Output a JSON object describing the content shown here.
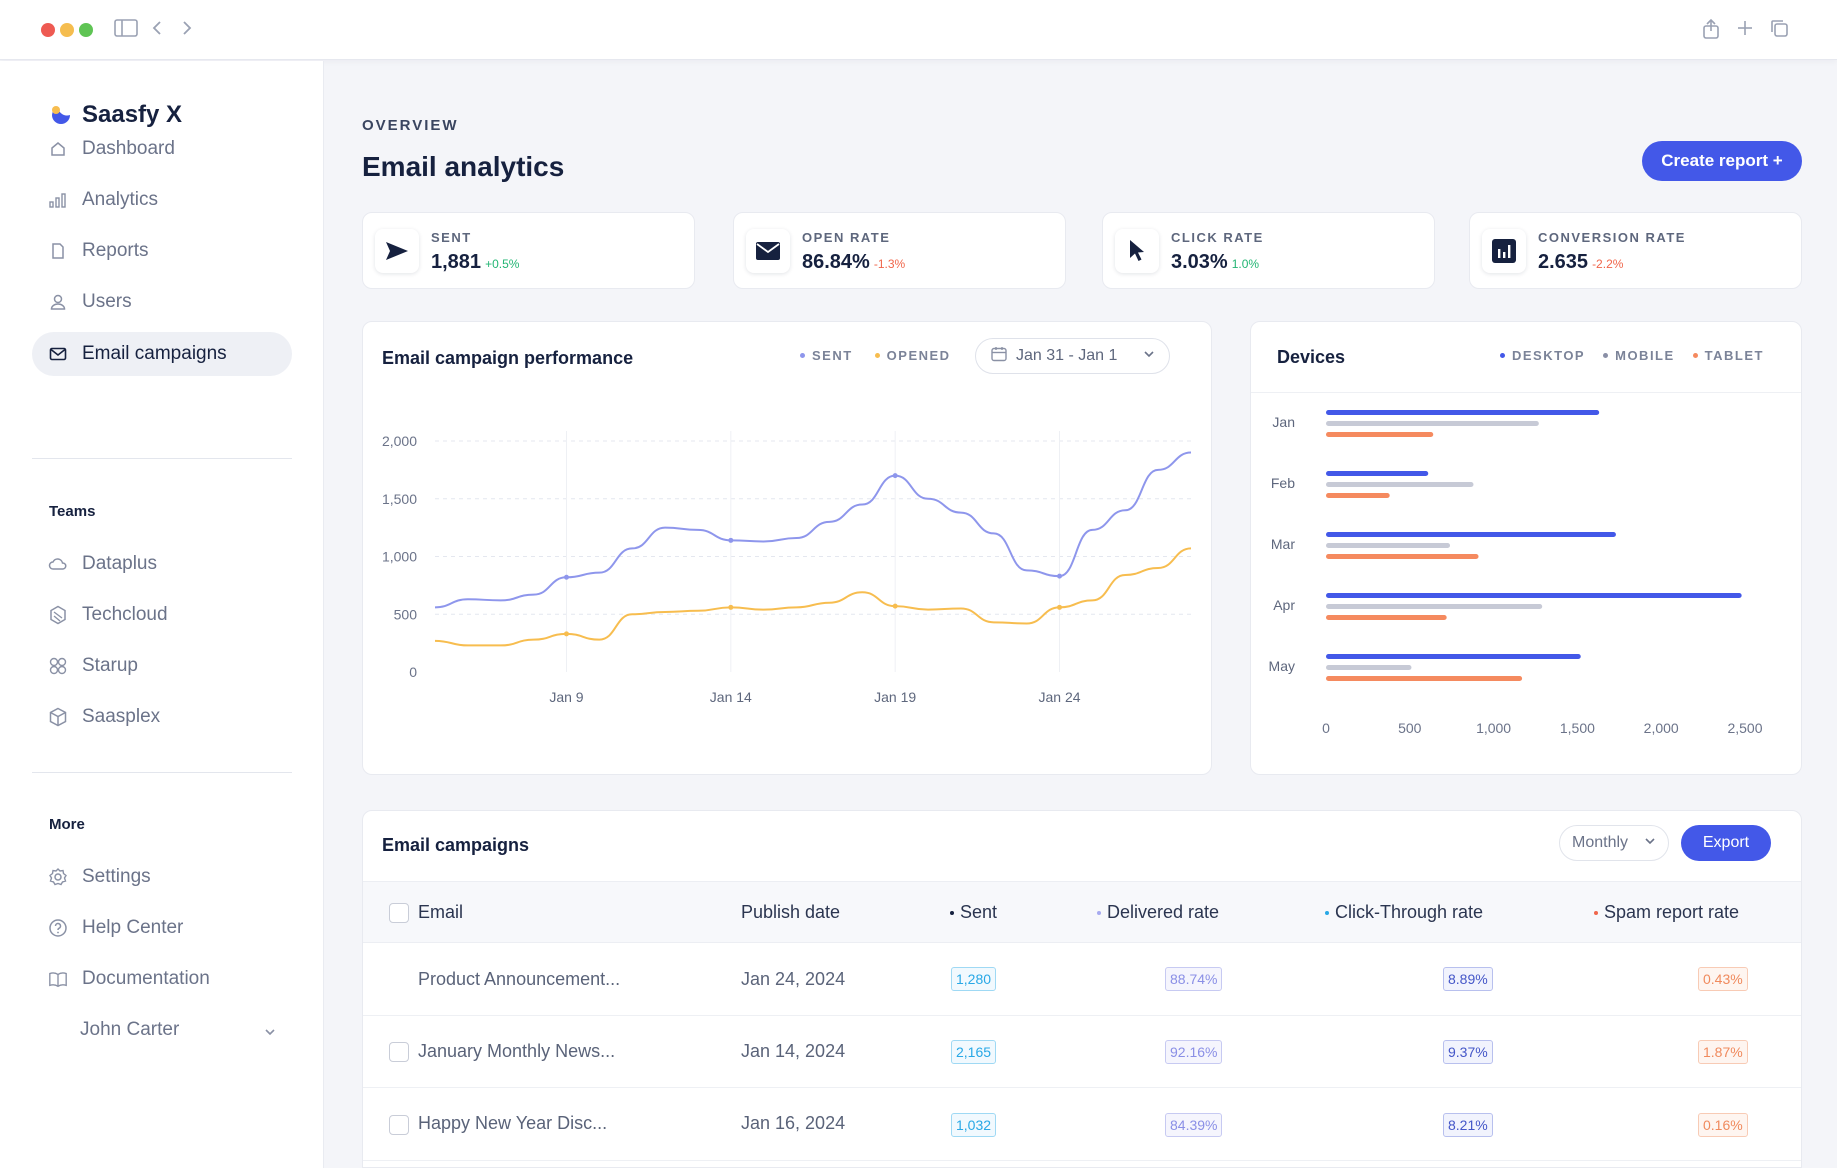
{
  "app": {
    "name": "Saasfy X"
  },
  "colors": {
    "accent": "#4358e8",
    "sent": "#8e96ec",
    "opened": "#f7bd4f",
    "desktop": "#4358e8",
    "mobile": "#c7cad6",
    "tablet": "#f58a5f"
  },
  "sidebar": {
    "main_items": [
      {
        "label": "Dashboard",
        "icon": "home-icon"
      },
      {
        "label": "Analytics",
        "icon": "bar-chart-icon"
      },
      {
        "label": "Reports",
        "icon": "document-icon"
      },
      {
        "label": "Users",
        "icon": "user-icon"
      },
      {
        "label": "Email campaigns",
        "icon": "mail-icon",
        "active": true
      }
    ],
    "teams_label": "Teams",
    "teams": [
      {
        "label": "Dataplus",
        "icon": "cloud-icon"
      },
      {
        "label": "Techcloud",
        "icon": "hexagon-icon"
      },
      {
        "label": "Starup",
        "icon": "grid-circles-icon"
      },
      {
        "label": "Saasplex",
        "icon": "cube-icon"
      }
    ],
    "more_label": "More",
    "more": [
      {
        "label": "Settings",
        "icon": "gear-icon"
      },
      {
        "label": "Help Center",
        "icon": "help-icon"
      },
      {
        "label": "Documentation",
        "icon": "book-icon"
      }
    ],
    "user": {
      "name": "John Carter"
    }
  },
  "header": {
    "overline": "OVERVIEW",
    "title": "Email analytics",
    "create_button": "Create report +"
  },
  "kpis": [
    {
      "label": "SENT",
      "value": "1,881",
      "delta": "+0.5%",
      "trend": "up",
      "icon": "send-icon"
    },
    {
      "label": "OPEN RATE",
      "value": "86.84%",
      "delta": "-1.3%",
      "trend": "down",
      "icon": "envelope-icon"
    },
    {
      "label": "CLICK RATE",
      "value": "3.03%",
      "delta": "1.0%",
      "trend": "up",
      "icon": "cursor-icon"
    },
    {
      "label": "CONVERSION RATE",
      "value": "2.635",
      "delta": "-2.2%",
      "trend": "down",
      "icon": "chart-box-icon"
    }
  ],
  "performance": {
    "title": "Email campaign performance",
    "legend": [
      "SENT",
      "OPENED"
    ],
    "date_range": "Jan 31 - Jan 1"
  },
  "devices": {
    "title": "Devices",
    "legend": [
      "DESKTOP",
      "MOBILE",
      "TABLET"
    ]
  },
  "chart_data": [
    {
      "type": "line",
      "title": "Email campaign performance",
      "x_ticks": [
        "Jan 9",
        "Jan 14",
        "Jan 19",
        "Jan 24"
      ],
      "y_ticks": [
        "0",
        "500",
        "1,000",
        "1,500",
        "2,000"
      ],
      "ylim": [
        0,
        2000
      ],
      "x": [
        "Jan 5",
        "Jan 6",
        "Jan 7",
        "Jan 8",
        "Jan 9",
        "Jan 10",
        "Jan 11",
        "Jan 12",
        "Jan 13",
        "Jan 14",
        "Jan 15",
        "Jan 16",
        "Jan 17",
        "Jan 18",
        "Jan 19",
        "Jan 20",
        "Jan 21",
        "Jan 22",
        "Jan 23",
        "Jan 24",
        "Jan 25",
        "Jan 26",
        "Jan 27",
        "Jan 28"
      ],
      "series": [
        {
          "name": "SENT",
          "values": [
            560,
            630,
            620,
            670,
            820,
            860,
            1070,
            1250,
            1230,
            1140,
            1130,
            1160,
            1300,
            1450,
            1700,
            1500,
            1380,
            1200,
            880,
            830,
            1230,
            1400,
            1750,
            1900
          ]
        },
        {
          "name": "OPENED",
          "values": [
            270,
            230,
            230,
            280,
            330,
            280,
            500,
            520,
            530,
            560,
            540,
            560,
            600,
            690,
            570,
            540,
            550,
            430,
            420,
            560,
            620,
            840,
            900,
            1070
          ]
        }
      ],
      "grid": true
    },
    {
      "type": "bar",
      "orientation": "horizontal",
      "title": "Devices",
      "categories": [
        "Jan",
        "Feb",
        "Mar",
        "Apr",
        "May"
      ],
      "x_ticks": [
        "0",
        "500",
        "1,000",
        "1,500",
        "2,000",
        "2,500"
      ],
      "xlim": [
        0,
        2500
      ],
      "series": [
        {
          "name": "DESKTOP",
          "values": [
            1630,
            610,
            1730,
            2480,
            1520
          ]
        },
        {
          "name": "MOBILE",
          "values": [
            1270,
            880,
            740,
            1290,
            510
          ]
        },
        {
          "name": "TABLET",
          "values": [
            640,
            380,
            910,
            720,
            1170
          ]
        }
      ]
    }
  ],
  "campaigns": {
    "title": "Email campaigns",
    "period": "Monthly",
    "export_button": "Export",
    "columns": [
      "Email",
      "Publish date",
      "Sent",
      "Delivered rate",
      "Click-Through rate",
      "Spam report rate"
    ],
    "rows": [
      {
        "email": "Product Announcement...",
        "date": "Jan 24, 2024",
        "sent": "1,280",
        "delivered": "88.74%",
        "ctr": "8.89%",
        "spam": "0.43%"
      },
      {
        "email": "January Monthly News...",
        "date": "Jan 14, 2024",
        "sent": "2,165",
        "delivered": "92.16%",
        "ctr": "9.37%",
        "spam": "1.87%"
      },
      {
        "email": "Happy New Year Disc...",
        "date": "Jan 16, 2024",
        "sent": "1,032",
        "delivered": "84.39%",
        "ctr": "8.21%",
        "spam": "0.16%"
      }
    ]
  }
}
